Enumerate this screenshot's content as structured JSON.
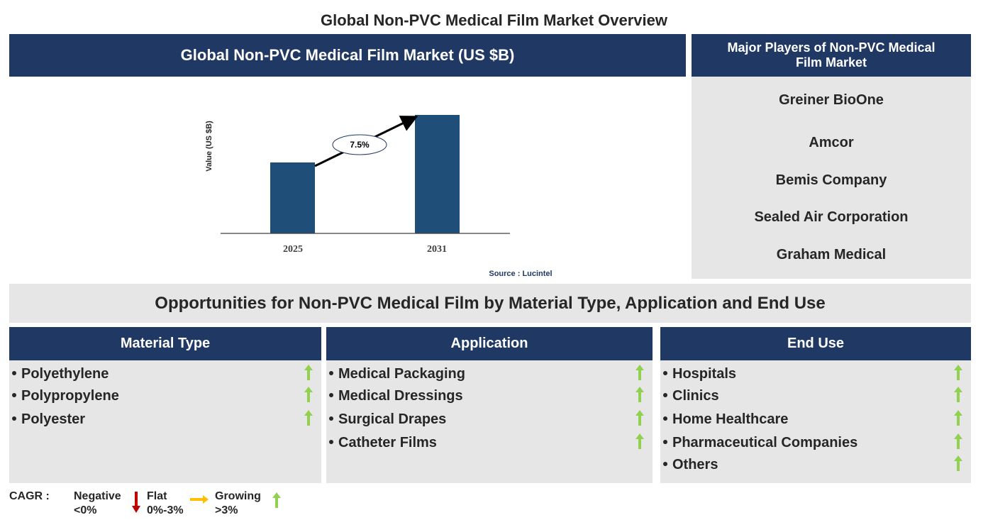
{
  "title": "Global Non-PVC Medical Film Market Overview",
  "market_panel": {
    "title": "Global Non-PVC Medical Film Market (US $B)",
    "y_axis_label": "Value (US $B)",
    "categories": [
      "2025",
      "2031"
    ],
    "cagr_label": "7.5%",
    "source": "Source : Lucintel"
  },
  "players": {
    "title": "Major Players of Non-PVC Medical Film Market",
    "items": [
      "Greiner BioOne",
      "Amcor",
      "Bemis Company",
      "Sealed Air Corporation",
      "Graham Medical"
    ]
  },
  "opportunities": {
    "title": "Opportunities for Non-PVC Medical Film by Material Type, Application and End Use",
    "columns": [
      {
        "title": "Material Type",
        "items": [
          "Polyethylene",
          "Polypropylene",
          "Polyester"
        ]
      },
      {
        "title": "Application",
        "items": [
          "Medical Packaging",
          "Medical Dressings",
          "Surgical Drapes",
          "Catheter Films"
        ]
      },
      {
        "title": "End Use",
        "items": [
          "Hospitals",
          "Clinics",
          "Home Healthcare",
          "Pharmaceutical Companies",
          "Others"
        ]
      }
    ]
  },
  "legend": {
    "title": "CAGR :",
    "items": [
      {
        "label": "Negative",
        "range": "<0%"
      },
      {
        "label": "Flat",
        "range": "0%-3%"
      },
      {
        "label": "Growing",
        "range": ">3%"
      }
    ]
  }
}
